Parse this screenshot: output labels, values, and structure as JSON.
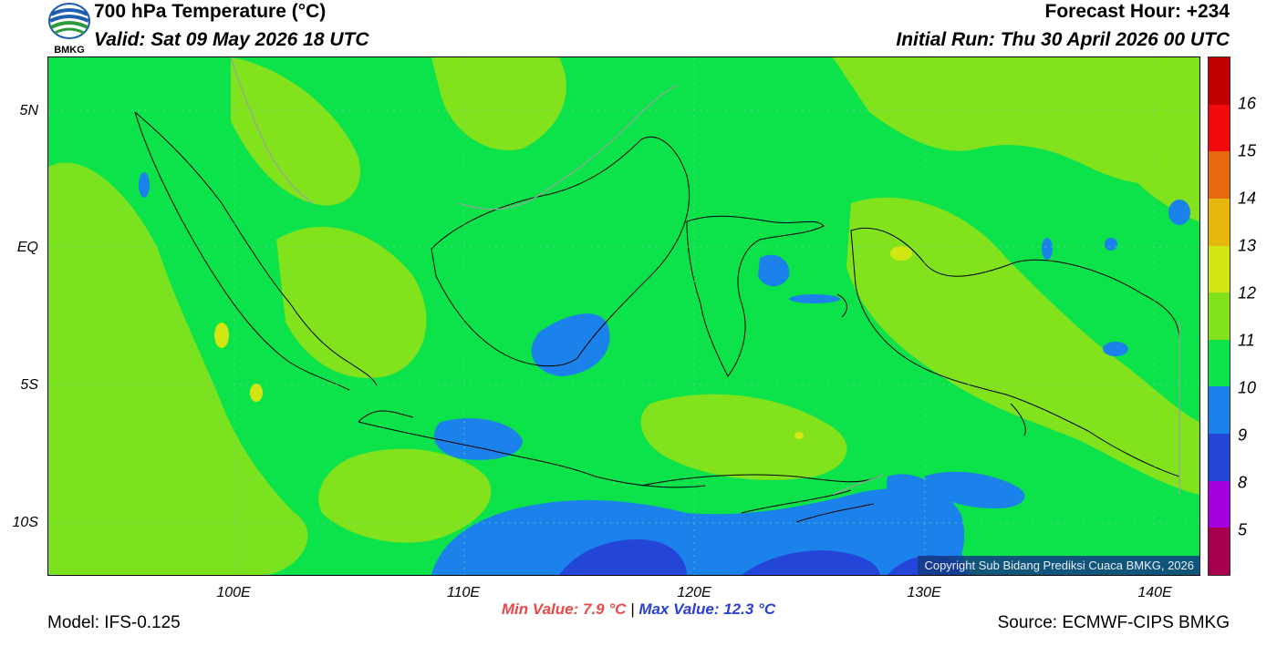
{
  "header": {
    "title": "700 hPa Temperature (°C)",
    "valid": "Valid: Sat 09 May 2026 18 UTC",
    "forecast_hour": "Forecast Hour: +234",
    "initial_run": "Initial Run: Thu 30 April 2026 00 UTC",
    "logo_text": "BMKG"
  },
  "map": {
    "lat_labels": [
      "5N",
      "EQ",
      "5S",
      "10S"
    ],
    "lon_labels": [
      "100E",
      "110E",
      "120E",
      "130E",
      "140E"
    ],
    "copyright": "Copyright Sub Bidang Prediksi Cuaca BMKG, 2026"
  },
  "colorbar": {
    "colors": [
      "#a8004e",
      "#a400e0",
      "#2446d8",
      "#1a82ea",
      "#0ce24a",
      "#82e21c",
      "#d2e614",
      "#e6b80e",
      "#e8680e",
      "#f00a0a",
      "#c00000"
    ],
    "labels": [
      "5",
      "8",
      "9",
      "10",
      "11",
      "12",
      "13",
      "14",
      "15",
      "16"
    ]
  },
  "stats": {
    "min_value": "Min Value: 7.9 °C",
    "separator": "|",
    "max_value": "Max Value: 12.3 °C"
  },
  "footer": {
    "model": "Model: IFS-0.125",
    "source": "Source: ECMWF-CIPS BMKG"
  }
}
